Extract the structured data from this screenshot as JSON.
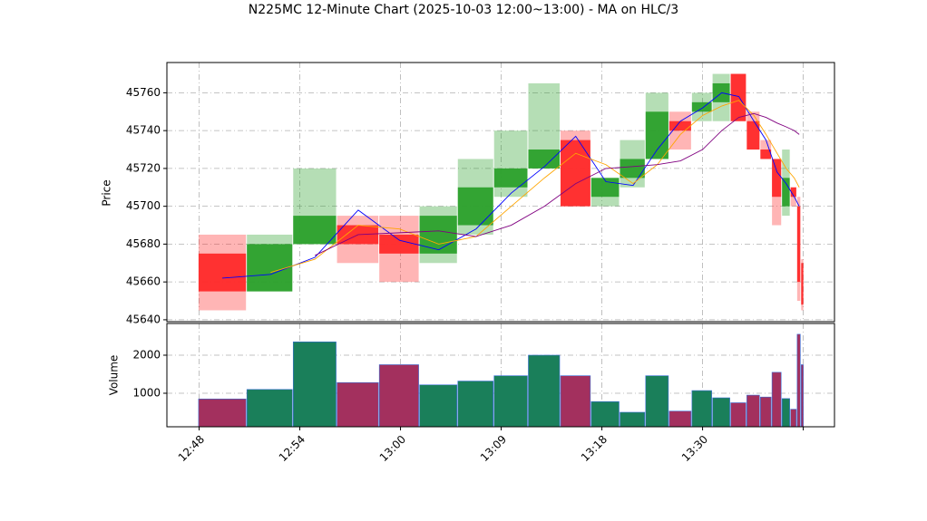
{
  "chart_data": {
    "type": "candlestick",
    "title": "N225MC 12-Minute Chart (2025-10-03 12:00~13:00) - MA on HLC/3",
    "ylabel": "Price",
    "x": [
      2.3,
      7.1,
      11.5,
      15.8,
      19.9,
      23.8,
      27.5,
      31.0,
      34.3,
      37.4,
      40.4,
      43.1,
      45.5,
      47.8,
      50.0,
      51.9,
      53.6,
      55.1,
      56.3,
      57.4,
      58.3,
      59.1,
      59.6,
      59.9
    ],
    "open": [
      45675,
      45655,
      45680,
      45690,
      45685,
      45675,
      45690,
      45710,
      45720,
      45735,
      45705,
      45715,
      45725,
      45745,
      45750,
      45755,
      45770,
      45745,
      45730,
      45725,
      45700,
      45710,
      45700,
      45670
    ],
    "high": [
      45685,
      45685,
      45720,
      45695,
      45695,
      45700,
      45725,
      45740,
      45765,
      45740,
      45715,
      45735,
      45760,
      45750,
      45760,
      45770,
      45770,
      45750,
      45735,
      45725,
      45730,
      45710,
      45705,
      45672
    ],
    "low": [
      45645,
      45655,
      45680,
      45670,
      45660,
      45670,
      45685,
      45705,
      45720,
      45700,
      45700,
      45710,
      45725,
      45730,
      45745,
      45745,
      45745,
      45730,
      45725,
      45690,
      45695,
      45700,
      45650,
      45645
    ],
    "close": [
      45655,
      45680,
      45695,
      45680,
      45675,
      45695,
      45710,
      45720,
      45730,
      45700,
      45715,
      45725,
      45750,
      45740,
      45755,
      45765,
      45745,
      45730,
      45725,
      45705,
      45715,
      45705,
      45660,
      45648
    ],
    "up_color": "#2ca02c",
    "down_color": "#ff2a2a",
    "ylim": [
      45639,
      45776
    ],
    "yticks": [
      45640,
      45660,
      45680,
      45700,
      45720,
      45740,
      45760
    ],
    "xlim": [
      -3.2,
      63.1
    ],
    "xticks": [
      {
        "value": 0,
        "label": "12:48"
      },
      {
        "value": 10,
        "label": "12:54"
      },
      {
        "value": 20,
        "label": "13:00"
      },
      {
        "value": 30,
        "label": "13:09"
      },
      {
        "value": 40,
        "label": "13:18"
      },
      {
        "value": 50,
        "label": "13:30"
      },
      {
        "value": 60,
        "label": null
      }
    ],
    "grid": true,
    "ma": [
      {
        "color": "#0000ff",
        "values": [
          45662,
          45664,
          45673,
          45698,
          45682,
          45677,
          45688,
          45707,
          45721,
          45737,
          45713,
          45711,
          45730,
          45745,
          45752,
          45760,
          45758,
          45745,
          45735,
          45718,
          45712,
          45705,
          45700,
          null
        ]
      },
      {
        "color": "#ffa500",
        "values": [
          null,
          45665,
          45672,
          45690,
          45688,
          45680,
          45684,
          45700,
          45715,
          45728,
          45722,
          45712,
          45722,
          45738,
          45748,
          45753,
          45756,
          45748,
          45738,
          45728,
          45720,
          45715,
          45710,
          null
        ]
      },
      {
        "color": "#800080",
        "values": [
          null,
          null,
          45674,
          45685,
          45686,
          45687,
          45684,
          45690,
          45700,
          45712,
          45720,
          45721,
          45722,
          45724,
          45730,
          45740,
          45747,
          45749,
          45747,
          45744,
          45742,
          45740,
          45738,
          null
        ]
      }
    ],
    "volume": {
      "ylabel": "Volume",
      "values": [
        850,
        1100,
        2350,
        1280,
        1750,
        1220,
        1320,
        1460,
        2000,
        1460,
        780,
        500,
        1460,
        530,
        1070,
        880,
        750,
        950,
        900,
        1550,
        860,
        580,
        2550,
        1750
      ],
      "up_color": "#1a7f5a",
      "down_color": "#a3305e",
      "ylim": [
        119,
        2833
      ],
      "yticks": [
        1000,
        2000
      ]
    }
  }
}
